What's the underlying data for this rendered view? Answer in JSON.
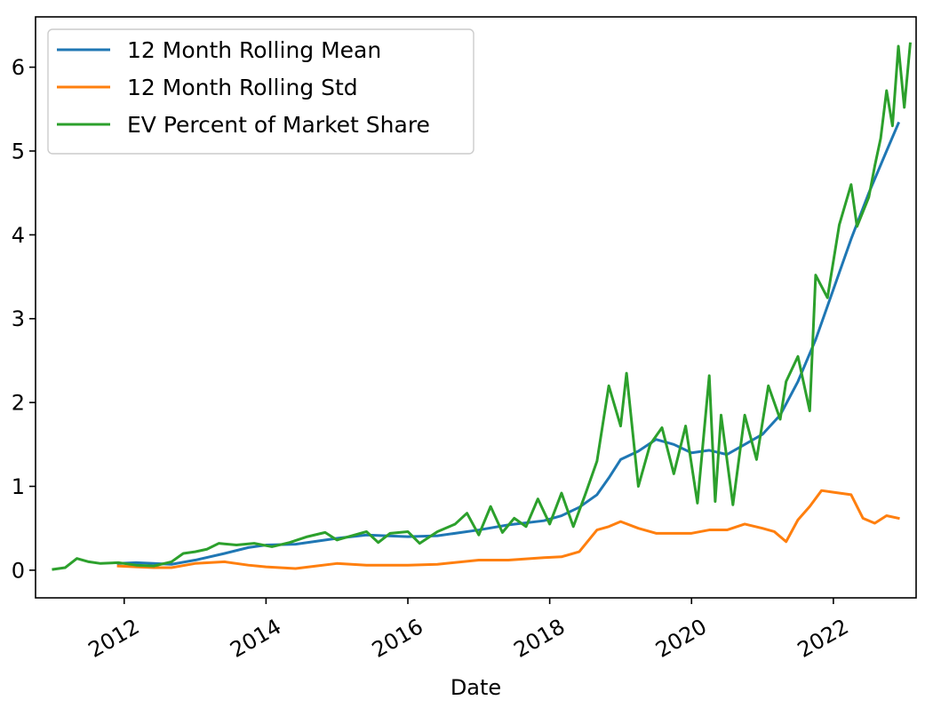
{
  "chart_data": {
    "type": "line",
    "title": "",
    "xlabel": "Date",
    "ylabel": "",
    "x_type": "date",
    "xlim": [
      "2010-10-01",
      "2023-03-01"
    ],
    "ylim": [
      -0.33,
      6.6
    ],
    "x_ticks": [
      "2012",
      "2014",
      "2016",
      "2018",
      "2020",
      "2022"
    ],
    "y_ticks": [
      "0",
      "1",
      "2",
      "3",
      "4",
      "5",
      "6"
    ],
    "grid": false,
    "legend_position": "top-left",
    "series": [
      {
        "name": "12 Month Rolling Mean",
        "color": "#1f77b4",
        "points": [
          [
            "2011-12",
            0.08
          ],
          [
            "2012-03",
            0.09
          ],
          [
            "2012-06",
            0.08
          ],
          [
            "2012-09",
            0.07
          ],
          [
            "2013-01",
            0.12
          ],
          [
            "2013-06",
            0.2
          ],
          [
            "2013-10",
            0.27
          ],
          [
            "2014-01",
            0.3
          ],
          [
            "2014-06",
            0.31
          ],
          [
            "2015-01",
            0.38
          ],
          [
            "2015-06",
            0.42
          ],
          [
            "2016-01",
            0.4
          ],
          [
            "2016-06",
            0.41
          ],
          [
            "2017-01",
            0.48
          ],
          [
            "2017-06",
            0.54
          ],
          [
            "2017-12",
            0.59
          ],
          [
            "2018-03",
            0.65
          ],
          [
            "2018-06",
            0.75
          ],
          [
            "2018-09",
            0.9
          ],
          [
            "2018-11",
            1.1
          ],
          [
            "2019-01",
            1.32
          ],
          [
            "2019-04",
            1.42
          ],
          [
            "2019-07",
            1.56
          ],
          [
            "2019-10",
            1.5
          ],
          [
            "2020-01",
            1.4
          ],
          [
            "2020-04",
            1.43
          ],
          [
            "2020-07",
            1.38
          ],
          [
            "2020-10",
            1.5
          ],
          [
            "2021-01",
            1.62
          ],
          [
            "2021-04",
            1.85
          ],
          [
            "2021-07",
            2.25
          ],
          [
            "2021-10",
            2.75
          ],
          [
            "2022-01",
            3.35
          ],
          [
            "2022-04",
            3.95
          ],
          [
            "2022-07",
            4.5
          ],
          [
            "2022-10",
            5.0
          ],
          [
            "2022-12",
            5.33
          ]
        ]
      },
      {
        "name": "12 Month Rolling Std",
        "color": "#ff7f0e",
        "points": [
          [
            "2011-12",
            0.05
          ],
          [
            "2012-03",
            0.04
          ],
          [
            "2012-06",
            0.03
          ],
          [
            "2012-09",
            0.03
          ],
          [
            "2013-01",
            0.08
          ],
          [
            "2013-06",
            0.1
          ],
          [
            "2013-10",
            0.06
          ],
          [
            "2014-01",
            0.04
          ],
          [
            "2014-06",
            0.02
          ],
          [
            "2015-01",
            0.08
          ],
          [
            "2015-06",
            0.06
          ],
          [
            "2016-01",
            0.06
          ],
          [
            "2016-06",
            0.07
          ],
          [
            "2017-01",
            0.12
          ],
          [
            "2017-06",
            0.12
          ],
          [
            "2017-12",
            0.15
          ],
          [
            "2018-03",
            0.16
          ],
          [
            "2018-06",
            0.22
          ],
          [
            "2018-09",
            0.48
          ],
          [
            "2018-11",
            0.52
          ],
          [
            "2019-01",
            0.58
          ],
          [
            "2019-04",
            0.5
          ],
          [
            "2019-07",
            0.44
          ],
          [
            "2019-10",
            0.44
          ],
          [
            "2020-01",
            0.44
          ],
          [
            "2020-04",
            0.48
          ],
          [
            "2020-07",
            0.48
          ],
          [
            "2020-10",
            0.55
          ],
          [
            "2021-01",
            0.5
          ],
          [
            "2021-03",
            0.46
          ],
          [
            "2021-05",
            0.34
          ],
          [
            "2021-07",
            0.6
          ],
          [
            "2021-09",
            0.76
          ],
          [
            "2021-11",
            0.95
          ],
          [
            "2022-01",
            0.93
          ],
          [
            "2022-04",
            0.9
          ],
          [
            "2022-06",
            0.62
          ],
          [
            "2022-08",
            0.56
          ],
          [
            "2022-10",
            0.65
          ],
          [
            "2022-12",
            0.62
          ]
        ]
      },
      {
        "name": "EV Percent of Market Share",
        "color": "#2ca02c",
        "points": [
          [
            "2011-01",
            0.01
          ],
          [
            "2011-03",
            0.03
          ],
          [
            "2011-05",
            0.14
          ],
          [
            "2011-07",
            0.1
          ],
          [
            "2011-09",
            0.08
          ],
          [
            "2011-12",
            0.09
          ],
          [
            "2012-03",
            0.06
          ],
          [
            "2012-06",
            0.05
          ],
          [
            "2012-09",
            0.1
          ],
          [
            "2012-11",
            0.2
          ],
          [
            "2013-01",
            0.22
          ],
          [
            "2013-03",
            0.25
          ],
          [
            "2013-05",
            0.32
          ],
          [
            "2013-08",
            0.3
          ],
          [
            "2013-11",
            0.32
          ],
          [
            "2014-02",
            0.28
          ],
          [
            "2014-05",
            0.33
          ],
          [
            "2014-08",
            0.4
          ],
          [
            "2014-11",
            0.45
          ],
          [
            "2015-01",
            0.36
          ],
          [
            "2015-04",
            0.42
          ],
          [
            "2015-06",
            0.46
          ],
          [
            "2015-08",
            0.33
          ],
          [
            "2015-10",
            0.44
          ],
          [
            "2016-01",
            0.46
          ],
          [
            "2016-03",
            0.32
          ],
          [
            "2016-06",
            0.46
          ],
          [
            "2016-09",
            0.55
          ],
          [
            "2016-11",
            0.68
          ],
          [
            "2017-01",
            0.42
          ],
          [
            "2017-03",
            0.76
          ],
          [
            "2017-05",
            0.45
          ],
          [
            "2017-07",
            0.62
          ],
          [
            "2017-09",
            0.52
          ],
          [
            "2017-11",
            0.85
          ],
          [
            "2018-01",
            0.55
          ],
          [
            "2018-03",
            0.92
          ],
          [
            "2018-05",
            0.52
          ],
          [
            "2018-07",
            0.9
          ],
          [
            "2018-09",
            1.3
          ],
          [
            "2018-11",
            2.2
          ],
          [
            "2019-01",
            1.72
          ],
          [
            "2019-02",
            2.35
          ],
          [
            "2019-04",
            1.0
          ],
          [
            "2019-06",
            1.5
          ],
          [
            "2019-08",
            1.7
          ],
          [
            "2019-10",
            1.15
          ],
          [
            "2019-12",
            1.72
          ],
          [
            "2020-02",
            0.8
          ],
          [
            "2020-04",
            2.32
          ],
          [
            "2020-05",
            0.82
          ],
          [
            "2020-06",
            1.85
          ],
          [
            "2020-08",
            0.78
          ],
          [
            "2020-10",
            1.85
          ],
          [
            "2020-12",
            1.32
          ],
          [
            "2021-02",
            2.2
          ],
          [
            "2021-04",
            1.8
          ],
          [
            "2021-05",
            2.25
          ],
          [
            "2021-07",
            2.55
          ],
          [
            "2021-09",
            1.9
          ],
          [
            "2021-10",
            3.52
          ],
          [
            "2021-12",
            3.25
          ],
          [
            "2022-02",
            4.12
          ],
          [
            "2022-04",
            4.6
          ],
          [
            "2022-05",
            4.1
          ],
          [
            "2022-07",
            4.45
          ],
          [
            "2022-08",
            4.82
          ],
          [
            "2022-09",
            5.15
          ],
          [
            "2022-10",
            5.72
          ],
          [
            "2022-11",
            5.3
          ],
          [
            "2022-12",
            6.25
          ],
          [
            "2023-01",
            5.52
          ],
          [
            "2023-02",
            6.28
          ]
        ]
      }
    ]
  }
}
